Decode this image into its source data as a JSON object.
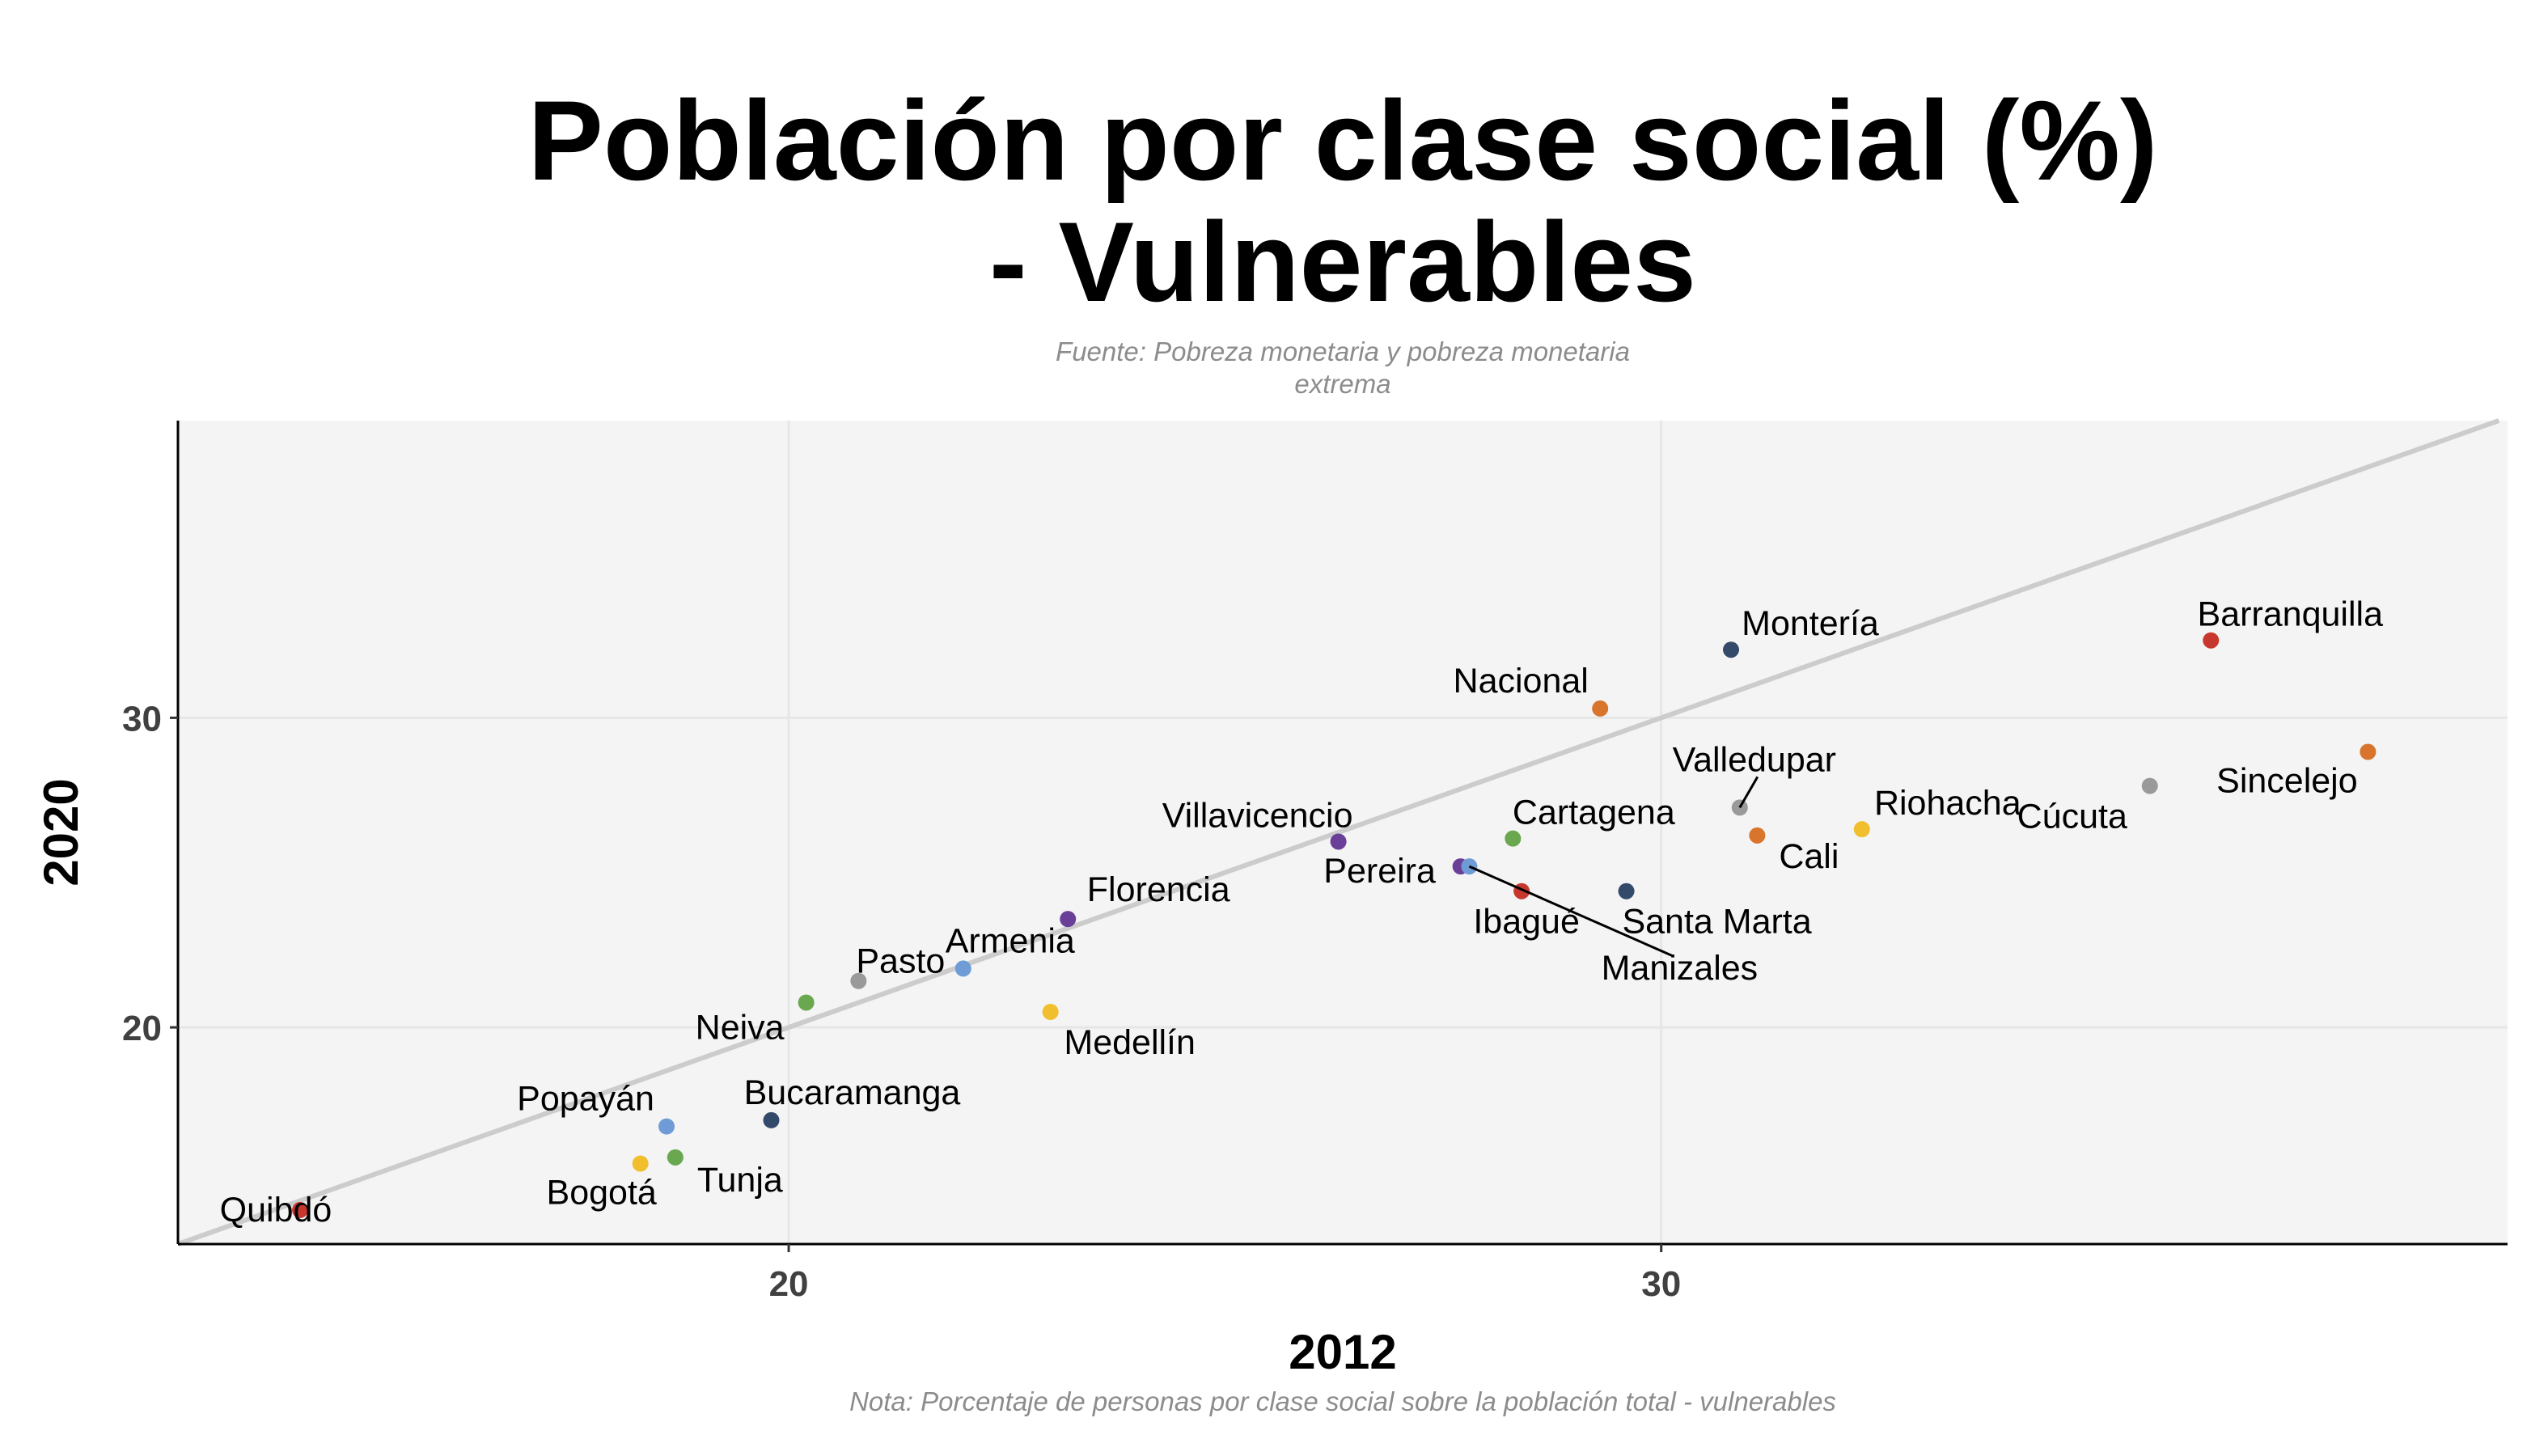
{
  "chart_data": {
    "type": "scatter",
    "title_lines": [
      "Población por clase social (%)",
      "- Vulnerables"
    ],
    "subtitle_lines": [
      "Fuente: Pobreza monetaria y pobreza monetaria",
      "extrema"
    ],
    "caption": "Nota: Porcentaje de personas por clase social sobre la población total - vulnerables",
    "xlabel": "2012",
    "ylabel": "2020",
    "xlim": [
      13,
      39.7
    ],
    "ylim": [
      13,
      39.6
    ],
    "xticks": [
      20,
      30
    ],
    "yticks": [
      20,
      30
    ],
    "reference_line": "y = x",
    "grid": true,
    "legend": "none",
    "colors": {
      "panel_bg": "#f4f4f4",
      "grid": "#e6e6e6",
      "reference_line": "#cccccc",
      "red": "#c8372d",
      "orange": "#d8742c",
      "gray": "#9a9a9a",
      "yellow": "#f1bf2e",
      "navy": "#344a6b",
      "green": "#69a84f",
      "purple": "#6a3f98",
      "blue": "#6f9bd6"
    },
    "points": [
      {
        "name": "Quibdó",
        "x": 14.4,
        "y": 14.1,
        "color": "red",
        "label_dx": -30,
        "label_dy": 14,
        "anchor": "middle"
      },
      {
        "name": "Bogotá",
        "x": 18.3,
        "y": 15.6,
        "color": "yellow",
        "label_dx": -48,
        "label_dy": 50,
        "anchor": "middle"
      },
      {
        "name": "Tunja",
        "x": 18.7,
        "y": 15.8,
        "color": "green",
        "label_dx": 80,
        "label_dy": 42,
        "anchor": "middle"
      },
      {
        "name": "Popayán",
        "x": 18.6,
        "y": 16.8,
        "color": "blue",
        "label_dx": -100,
        "label_dy": -20,
        "anchor": "middle"
      },
      {
        "name": "Bucaramanga",
        "x": 19.8,
        "y": 17.0,
        "color": "navy",
        "label_dx": 100,
        "label_dy": -20,
        "anchor": "middle"
      },
      {
        "name": "Neiva",
        "x": 20.2,
        "y": 20.8,
        "color": "green",
        "label_dx": -82,
        "label_dy": 45,
        "anchor": "middle"
      },
      {
        "name": "Pasto",
        "x": 20.8,
        "y": 21.5,
        "color": "gray",
        "label_dx": 52,
        "label_dy": -10,
        "anchor": "middle"
      },
      {
        "name": "Armenia",
        "x": 22.0,
        "y": 21.9,
        "color": "blue",
        "label_dx": 58,
        "label_dy": -20,
        "anchor": "middle"
      },
      {
        "name": "Medellín",
        "x": 23.0,
        "y": 20.5,
        "color": "yellow",
        "label_dx": 98,
        "label_dy": 52,
        "anchor": "middle"
      },
      {
        "name": "Florencia",
        "x": 23.2,
        "y": 23.5,
        "color": "purple",
        "label_dx": 112,
        "label_dy": -22,
        "anchor": "middle"
      },
      {
        "name": "Villavicencio",
        "x": 26.3,
        "y": 26.0,
        "color": "purple",
        "label_dx": -100,
        "label_dy": -18,
        "anchor": "middle"
      },
      {
        "name": "Pereira",
        "x": 27.7,
        "y": 25.2,
        "color": "purple",
        "label_dx": -100,
        "label_dy": 20,
        "anchor": "middle"
      },
      {
        "name": "Manizales",
        "x": 27.8,
        "y": 25.2,
        "color": "blue",
        "label_dx": 260,
        "label_dy": 140,
        "anchor": "middle",
        "leader": [
          250,
          110
        ]
      },
      {
        "name": "Cartagena",
        "x": 28.3,
        "y": 26.1,
        "color": "green",
        "label_dx": 100,
        "label_dy": -18,
        "anchor": "middle"
      },
      {
        "name": "Ibagué",
        "x": 28.4,
        "y": 24.4,
        "color": "red",
        "label_dx": 6,
        "label_dy": 52,
        "anchor": "middle"
      },
      {
        "name": "Nacional",
        "x": 29.3,
        "y": 30.3,
        "color": "orange",
        "label_dx": -98,
        "label_dy": -20,
        "anchor": "middle"
      },
      {
        "name": "Santa Marta",
        "x": 29.6,
        "y": 24.4,
        "color": "navy",
        "label_dx": 112,
        "label_dy": 52,
        "anchor": "middle"
      },
      {
        "name": "Montería",
        "x": 30.8,
        "y": 32.2,
        "color": "navy",
        "label_dx": 98,
        "label_dy": -18,
        "anchor": "middle"
      },
      {
        "name": "Valledupar",
        "x": 30.9,
        "y": 27.1,
        "color": "gray",
        "label_dx": 18,
        "label_dy": -45,
        "anchor": "middle",
        "leader": [
          22,
          -38
        ]
      },
      {
        "name": "Cali",
        "x": 31.1,
        "y": 26.2,
        "color": "orange",
        "label_dx": 64,
        "label_dy": 40,
        "anchor": "middle"
      },
      {
        "name": "Riohacha",
        "x": 32.3,
        "y": 26.4,
        "color": "yellow",
        "label_dx": 106,
        "label_dy": -18,
        "anchor": "middle"
      },
      {
        "name": "Cúcuta",
        "x": 35.6,
        "y": 27.8,
        "color": "gray",
        "label_dx": -96,
        "label_dy": 52,
        "anchor": "middle"
      },
      {
        "name": "Barranquilla",
        "x": 36.3,
        "y": 32.5,
        "color": "red",
        "label_dx": 98,
        "label_dy": -18,
        "anchor": "middle"
      },
      {
        "name": "Sincelejo",
        "x": 38.1,
        "y": 28.9,
        "color": "orange",
        "label_dx": -100,
        "label_dy": 50,
        "anchor": "middle"
      }
    ]
  }
}
